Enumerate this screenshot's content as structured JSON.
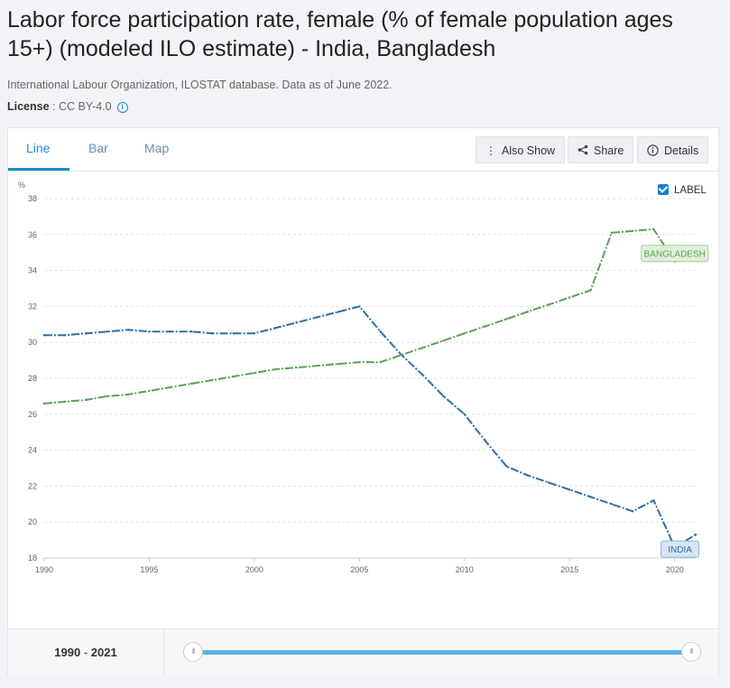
{
  "title": "Labor force participation rate, female (% of female population ages 15+) (modeled ILO estimate) - India, Bangladesh",
  "source": "International Labour Organization, ILOSTAT database. Data as of June 2022.",
  "license": {
    "label": "License",
    "value": "CC BY-4.0",
    "icon": "info-icon"
  },
  "tabs": [
    "Line",
    "Bar",
    "Map"
  ],
  "active_tab": "Line",
  "actions": {
    "also_show": "Also Show",
    "share": "Share",
    "details": "Details"
  },
  "label_toggle": {
    "text": "LABEL",
    "checked": true
  },
  "range": {
    "start": "1990",
    "separator": "-",
    "end": "2021"
  },
  "colors": {
    "india": "#2f6ea5",
    "bangladesh": "#5aa05a",
    "accent": "#1a8bd4"
  },
  "chart_data": {
    "type": "line",
    "ylabel": "%",
    "ylim": [
      18,
      38
    ],
    "yticks": [
      18,
      20,
      22,
      24,
      26,
      28,
      30,
      32,
      34,
      36,
      38
    ],
    "xlim": [
      1990,
      2021
    ],
    "xticks": [
      1990,
      1995,
      2000,
      2005,
      2010,
      2015,
      2020
    ],
    "grid": true,
    "series": [
      {
        "name": "INDIA",
        "color": "#2f6ea5",
        "x": [
          1990,
          1991,
          1992,
          1993,
          1994,
          1995,
          1996,
          1997,
          1998,
          1999,
          2000,
          2001,
          2002,
          2003,
          2004,
          2005,
          2006,
          2007,
          2008,
          2009,
          2010,
          2011,
          2012,
          2013,
          2014,
          2015,
          2016,
          2017,
          2018,
          2019,
          2020,
          2021
        ],
        "values": [
          30.4,
          30.4,
          30.5,
          30.6,
          30.7,
          30.6,
          30.6,
          30.6,
          30.5,
          30.5,
          30.5,
          30.8,
          31.1,
          31.4,
          31.7,
          32.0,
          30.6,
          29.3,
          28.2,
          27.0,
          26.0,
          24.5,
          23.1,
          22.6,
          22.2,
          21.8,
          21.4,
          21.0,
          20.6,
          21.2,
          18.6,
          19.3
        ]
      },
      {
        "name": "BANGLADESH",
        "color": "#5aa05a",
        "x": [
          1990,
          1991,
          1992,
          1993,
          1994,
          1995,
          1996,
          1997,
          1998,
          1999,
          2000,
          2001,
          2002,
          2003,
          2004,
          2005,
          2006,
          2007,
          2008,
          2009,
          2010,
          2011,
          2012,
          2013,
          2014,
          2015,
          2016,
          2017,
          2018,
          2019,
          2020,
          2021
        ],
        "values": [
          26.6,
          26.7,
          26.8,
          27.0,
          27.1,
          27.3,
          27.5,
          27.7,
          27.9,
          28.1,
          28.3,
          28.5,
          28.6,
          28.7,
          28.8,
          28.9,
          28.9,
          29.3,
          29.7,
          30.1,
          30.5,
          30.9,
          31.3,
          31.7,
          32.1,
          32.5,
          32.9,
          36.1,
          36.2,
          36.3,
          34.5,
          34.9
        ]
      }
    ]
  }
}
